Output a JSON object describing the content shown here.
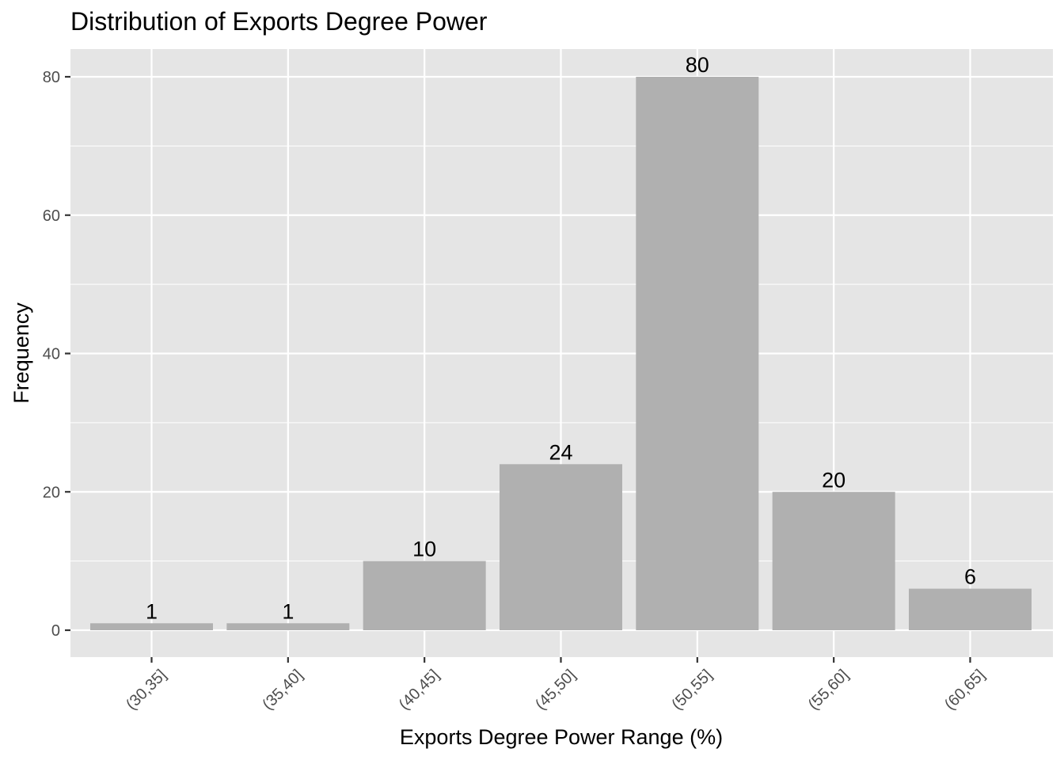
{
  "chart_data": {
    "type": "bar",
    "title": "Distribution of Exports Degree Power",
    "xlabel": "Exports Degree Power Range (%)",
    "ylabel": "Frequency",
    "categories": [
      "(30,35]",
      "(35,40]",
      "(40,45]",
      "(45,50]",
      "(50,55]",
      "(55,60]",
      "(60,65]"
    ],
    "values": [
      1,
      1,
      10,
      24,
      80,
      20,
      6
    ],
    "data_labels": [
      "1",
      "1",
      "10",
      "24",
      "80",
      "20",
      "6"
    ],
    "ylim": [
      0,
      84
    ],
    "yticks": [
      0,
      20,
      40,
      60,
      80
    ],
    "grid": true,
    "legend": "none",
    "colors": {
      "panel_background": "#e5e5e5",
      "grid_major": "#ffffff",
      "bar_fill": "#b0b0b0",
      "tick_text": "#4d4d4d",
      "text": "#000000"
    }
  }
}
